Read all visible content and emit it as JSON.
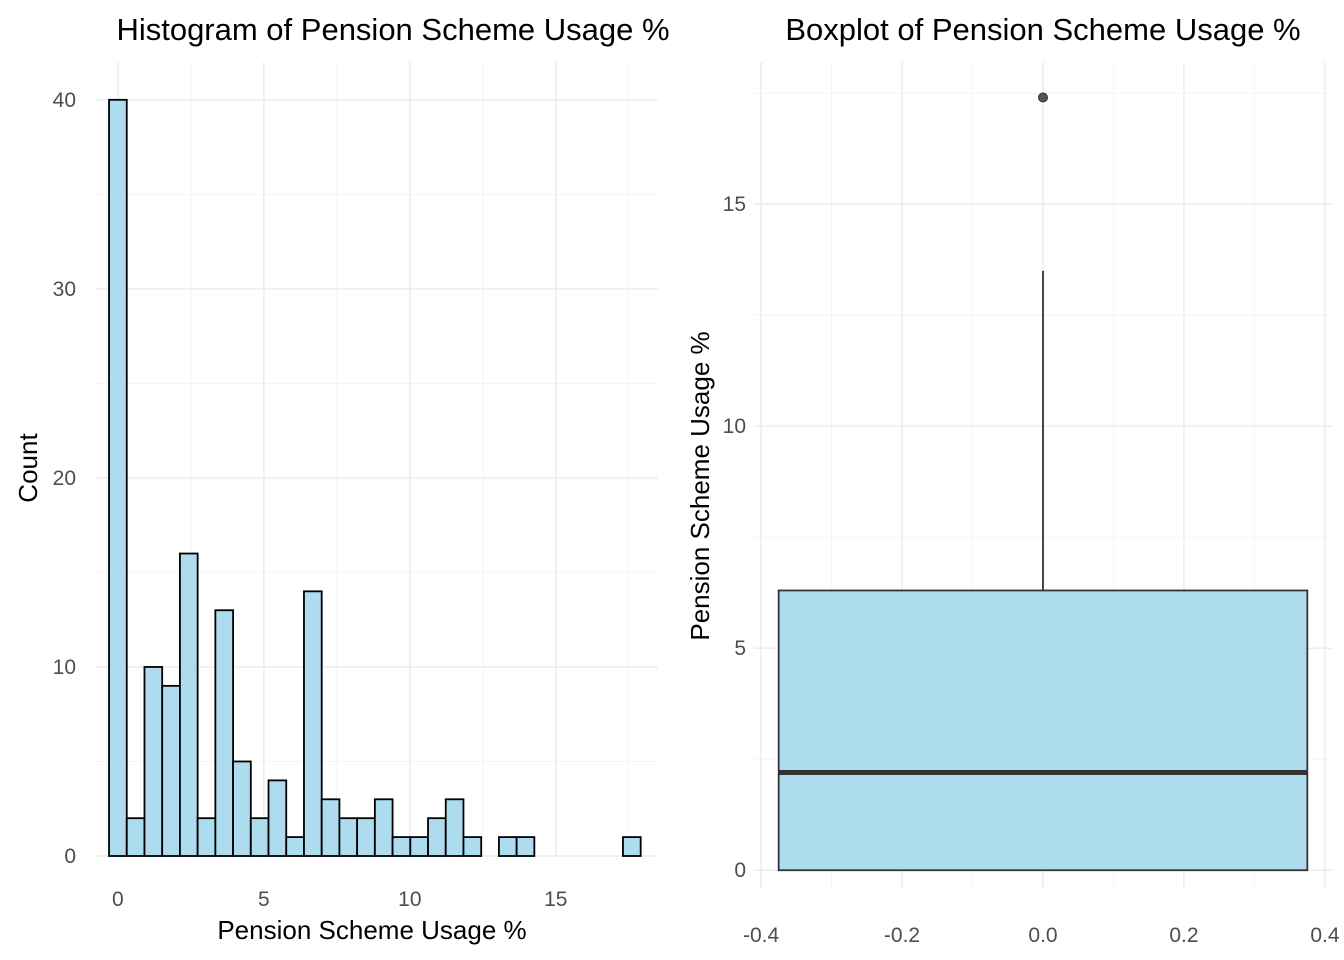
{
  "colors": {
    "fill": "#ADDCEE",
    "outline": "#000000",
    "median": "#333333",
    "whisker": "#333333",
    "outlier": "#555555"
  },
  "chart_data": [
    {
      "type": "bar",
      "subtype": "histogram",
      "title": "Histogram of Pension Scheme Usage %",
      "xlabel": "Pension Scheme Usage %",
      "ylabel": "Count",
      "bin_width": 0.607,
      "bin_centers": [
        0,
        0.607,
        1.214,
        1.821,
        2.428,
        3.035,
        3.642,
        4.249,
        4.856,
        5.463,
        6.07,
        6.677,
        7.284,
        7.891,
        8.498,
        9.105,
        9.712,
        10.319,
        10.926,
        11.533,
        12.14,
        12.747,
        13.354,
        13.961,
        14.568,
        15.175,
        15.782,
        16.389,
        16.996,
        17.603
      ],
      "values": [
        40,
        2,
        10,
        9,
        16,
        2,
        13,
        5,
        2,
        4,
        1,
        14,
        3,
        2,
        2,
        3,
        1,
        1,
        2,
        3,
        1,
        0,
        1,
        1,
        0,
        0,
        0,
        0,
        0,
        1
      ],
      "xlim": [
        -0.75,
        18.5
      ],
      "ylim": [
        0,
        42
      ],
      "x_ticks": [
        0,
        5,
        10,
        15
      ],
      "x_tick_labels": [
        "0",
        "5",
        "10",
        "15"
      ],
      "y_ticks": [
        0,
        10,
        20,
        30,
        40
      ],
      "y_tick_labels": [
        "0",
        "10",
        "20",
        "30",
        "40"
      ],
      "grid": true
    },
    {
      "type": "box",
      "title": "Boxplot of Pension Scheme Usage %",
      "xlabel": "",
      "ylabel": "Pension Scheme Usage %",
      "x_center": 0,
      "box_halfwidth": 0.375,
      "q1": 0,
      "median": 2.2,
      "q3": 6.3,
      "whisker_low": 0,
      "whisker_high": 13.5,
      "outliers": [
        17.4
      ],
      "xlim": [
        -0.41,
        0.41
      ],
      "ylim": [
        -0.4,
        18.2
      ],
      "x_ticks": [
        -0.4,
        -0.2,
        0.0,
        0.2,
        0.4
      ],
      "x_tick_labels": [
        "-0.4",
        "-0.2",
        "0.0",
        "0.2",
        "0.4"
      ],
      "y_ticks": [
        0,
        5,
        10,
        15
      ],
      "y_tick_labels": [
        "0",
        "5",
        "10",
        "15"
      ],
      "grid": true
    }
  ]
}
